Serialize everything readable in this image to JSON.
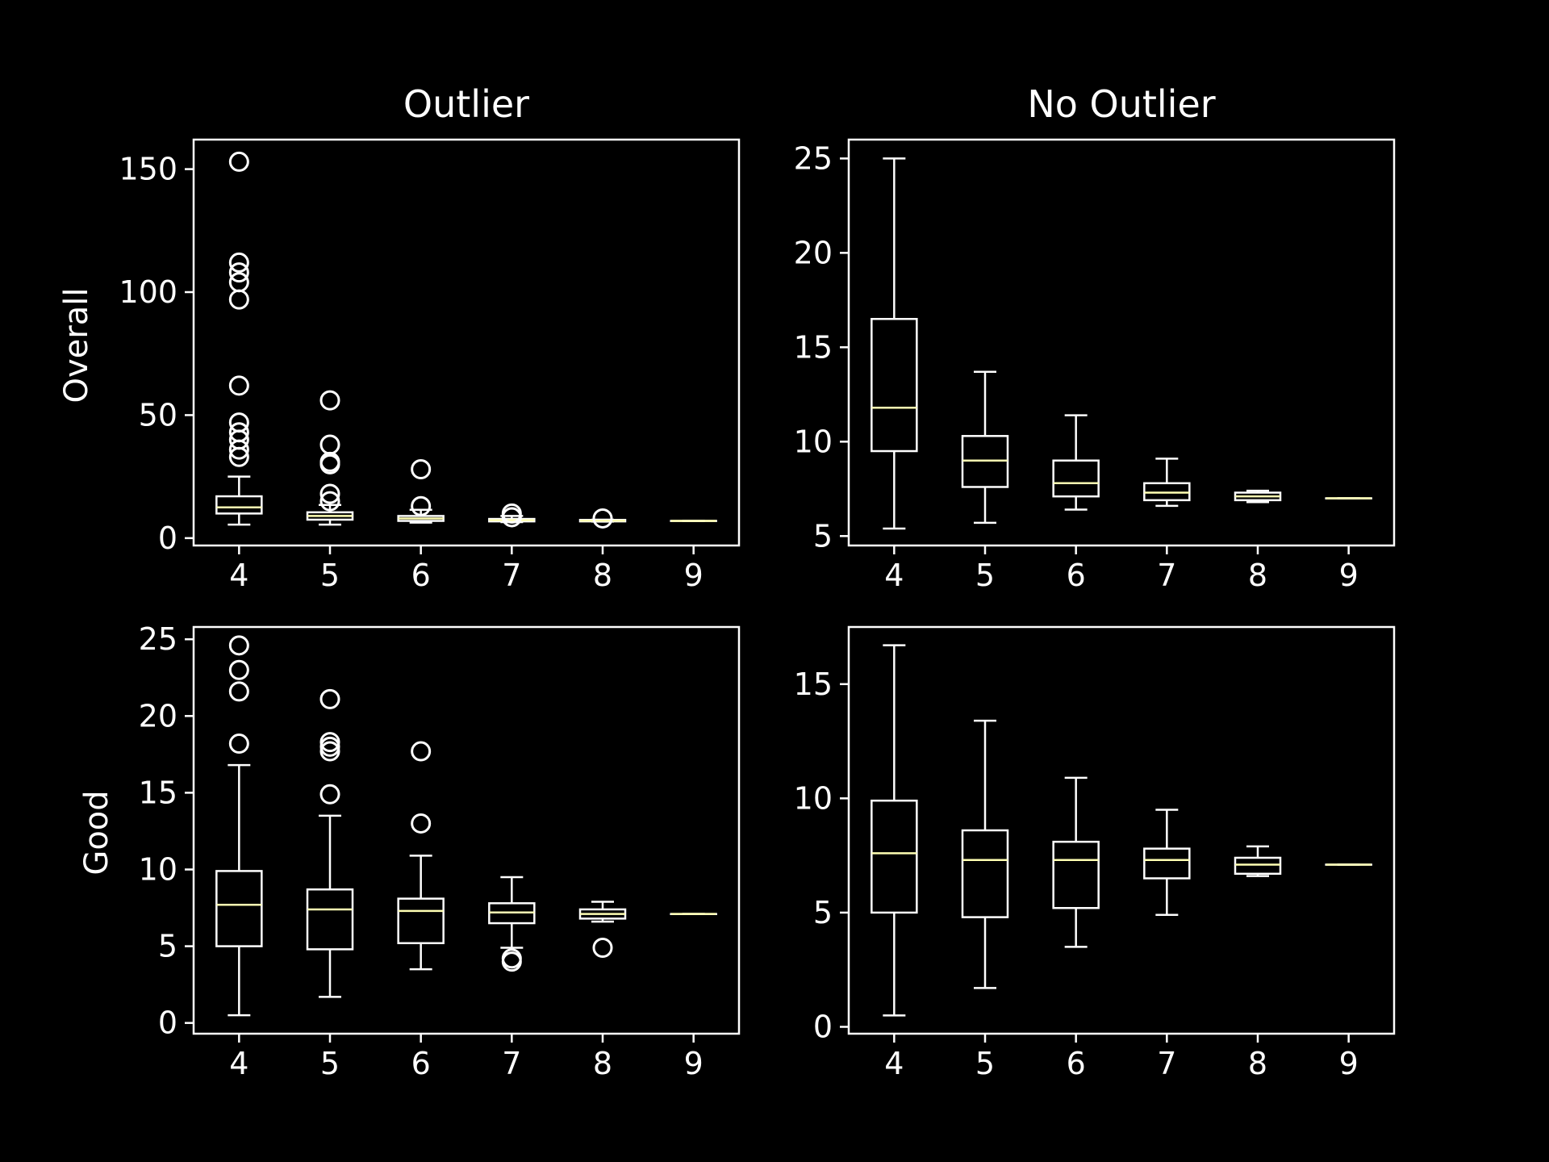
{
  "chart_data": [
    {
      "type": "boxplot",
      "title": "Outlier",
      "ylabel": "Overall",
      "categories": [
        "4",
        "5",
        "6",
        "7",
        "8",
        "9"
      ],
      "ylim": [
        -3,
        162
      ],
      "yticks": [
        0,
        50,
        100,
        150
      ],
      "boxes": [
        {
          "q1": 10,
          "median": 12.5,
          "q3": 17,
          "whislo": 5.5,
          "whishi": 25,
          "fliers": [
            33,
            36,
            40,
            43,
            47,
            62,
            97,
            104,
            108,
            112,
            153
          ]
        },
        {
          "q1": 7.5,
          "median": 9,
          "q3": 10.5,
          "whislo": 5.5,
          "whishi": 13.5,
          "fliers": [
            15,
            18,
            30,
            31,
            38,
            56
          ]
        },
        {
          "q1": 7,
          "median": 8,
          "q3": 9,
          "whislo": 6.3,
          "whishi": 11.5,
          "fliers": [
            13,
            28
          ]
        },
        {
          "q1": 6.8,
          "median": 7.3,
          "q3": 7.8,
          "whislo": 6.5,
          "whishi": 9,
          "fliers": [
            8.5,
            10
          ]
        },
        {
          "q1": 6.8,
          "median": 7.1,
          "q3": 7.4,
          "whislo": 6.7,
          "whishi": 7.5,
          "fliers": [
            8
          ]
        },
        {
          "q1": 7,
          "median": 7,
          "q3": 7,
          "whislo": 7,
          "whishi": 7,
          "fliers": []
        }
      ]
    },
    {
      "type": "boxplot",
      "title": "No Outlier",
      "ylabel": "",
      "categories": [
        "4",
        "5",
        "6",
        "7",
        "8",
        "9"
      ],
      "ylim": [
        4.5,
        26
      ],
      "yticks": [
        5,
        10,
        15,
        20,
        25
      ],
      "boxes": [
        {
          "q1": 9.5,
          "median": 11.8,
          "q3": 16.5,
          "whislo": 5.4,
          "whishi": 25,
          "fliers": []
        },
        {
          "q1": 7.6,
          "median": 9,
          "q3": 10.3,
          "whislo": 5.7,
          "whishi": 13.7,
          "fliers": []
        },
        {
          "q1": 7.1,
          "median": 7.8,
          "q3": 9,
          "whislo": 6.4,
          "whishi": 11.4,
          "fliers": []
        },
        {
          "q1": 6.9,
          "median": 7.3,
          "q3": 7.8,
          "whislo": 6.6,
          "whishi": 9.1,
          "fliers": []
        },
        {
          "q1": 6.9,
          "median": 7.1,
          "q3": 7.3,
          "whislo": 6.8,
          "whishi": 7.4,
          "fliers": []
        },
        {
          "q1": 7,
          "median": 7,
          "q3": 7,
          "whislo": 7,
          "whishi": 7,
          "fliers": []
        }
      ]
    },
    {
      "type": "boxplot",
      "title": "",
      "ylabel": "Good",
      "categories": [
        "4",
        "5",
        "6",
        "7",
        "8",
        "9"
      ],
      "ylim": [
        -0.7,
        25.8
      ],
      "yticks": [
        0,
        5,
        10,
        15,
        20,
        25
      ],
      "boxes": [
        {
          "q1": 5,
          "median": 7.7,
          "q3": 9.9,
          "whislo": 0.5,
          "whishi": 16.8,
          "fliers": [
            18.2,
            21.6,
            23,
            24.6
          ]
        },
        {
          "q1": 4.8,
          "median": 7.4,
          "q3": 8.7,
          "whislo": 1.7,
          "whishi": 13.5,
          "fliers": [
            14.9,
            17.7,
            18,
            18.3,
            21.1
          ]
        },
        {
          "q1": 5.2,
          "median": 7.3,
          "q3": 8.1,
          "whislo": 3.5,
          "whishi": 10.9,
          "fliers": [
            13,
            17.7
          ]
        },
        {
          "q1": 6.5,
          "median": 7.2,
          "q3": 7.8,
          "whislo": 4.9,
          "whishi": 9.5,
          "fliers": [
            4,
            4.2
          ]
        },
        {
          "q1": 6.8,
          "median": 7.1,
          "q3": 7.4,
          "whislo": 6.6,
          "whishi": 7.9,
          "fliers": [
            4.9
          ]
        },
        {
          "q1": 7.1,
          "median": 7.1,
          "q3": 7.1,
          "whislo": 7.1,
          "whishi": 7.1,
          "fliers": []
        }
      ]
    },
    {
      "type": "boxplot",
      "title": "",
      "ylabel": "",
      "categories": [
        "4",
        "5",
        "6",
        "7",
        "8",
        "9"
      ],
      "ylim": [
        -0.3,
        17.5
      ],
      "yticks": [
        0,
        5,
        10,
        15
      ],
      "boxes": [
        {
          "q1": 5,
          "median": 7.6,
          "q3": 9.9,
          "whislo": 0.5,
          "whishi": 16.7,
          "fliers": []
        },
        {
          "q1": 4.8,
          "median": 7.3,
          "q3": 8.6,
          "whislo": 1.7,
          "whishi": 13.4,
          "fliers": []
        },
        {
          "q1": 5.2,
          "median": 7.3,
          "q3": 8.1,
          "whislo": 3.5,
          "whishi": 10.9,
          "fliers": []
        },
        {
          "q1": 6.5,
          "median": 7.3,
          "q3": 7.8,
          "whislo": 4.9,
          "whishi": 9.5,
          "fliers": []
        },
        {
          "q1": 6.7,
          "median": 7.1,
          "q3": 7.4,
          "whislo": 6.6,
          "whishi": 7.9,
          "fliers": []
        },
        {
          "q1": 7.1,
          "median": 7.1,
          "q3": 7.1,
          "whislo": 7.1,
          "whishi": 7.1,
          "fliers": []
        }
      ]
    }
  ],
  "colors": {
    "background": "#000000",
    "foreground": "#ffffff",
    "median": "#ffffb3"
  }
}
